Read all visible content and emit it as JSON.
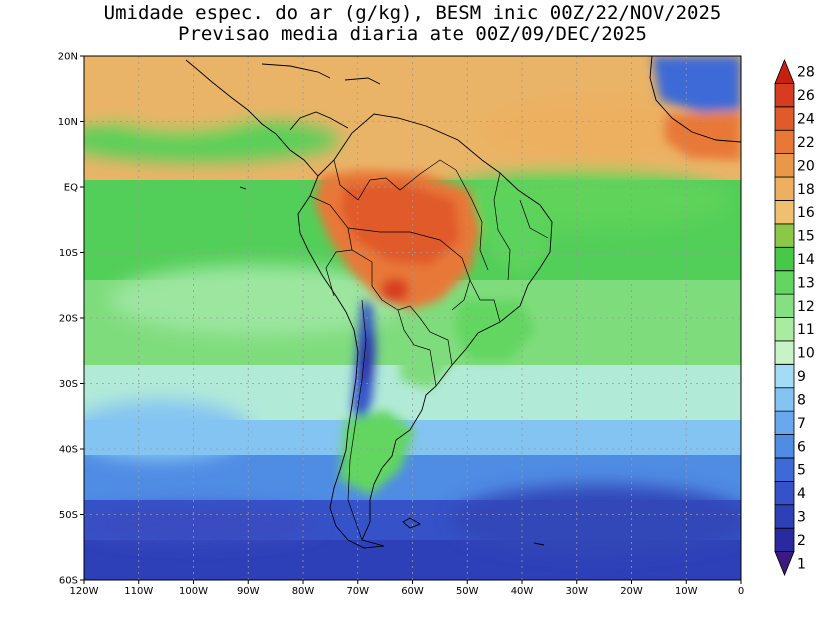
{
  "title": {
    "line1": "Umidade espec. do ar (g/kg), BESM inic 00Z/22/NOV/2025",
    "line2": "Previsao media diaria ate 00Z/09/DEC/2025"
  },
  "map": {
    "lon_range": [
      -120,
      0
    ],
    "lat_range": [
      -60,
      20
    ],
    "lat_labels": [
      {
        "lat": 20,
        "text": "20N"
      },
      {
        "lat": 10,
        "text": "10N"
      },
      {
        "lat": 0,
        "text": "EQ"
      },
      {
        "lat": -10,
        "text": "10S"
      },
      {
        "lat": -20,
        "text": "20S"
      },
      {
        "lat": -30,
        "text": "30S"
      },
      {
        "lat": -40,
        "text": "40S"
      },
      {
        "lat": -50,
        "text": "50S"
      },
      {
        "lat": -60,
        "text": "60S"
      }
    ],
    "lon_labels": [
      {
        "lon": -120,
        "text": "120W"
      },
      {
        "lon": -110,
        "text": "110W"
      },
      {
        "lon": -100,
        "text": "100W"
      },
      {
        "lon": -90,
        "text": "90W"
      },
      {
        "lon": -80,
        "text": "80W"
      },
      {
        "lon": -70,
        "text": "70W"
      },
      {
        "lon": -60,
        "text": "60W"
      },
      {
        "lon": -50,
        "text": "50W"
      },
      {
        "lon": -40,
        "text": "40W"
      },
      {
        "lon": -30,
        "text": "30W"
      },
      {
        "lon": -20,
        "text": "20W"
      },
      {
        "lon": -10,
        "text": "10W"
      },
      {
        "lon": 0,
        "text": "0"
      }
    ],
    "grid": true
  },
  "colorbar": {
    "levels": [
      "1",
      "2",
      "3",
      "4",
      "5",
      "6",
      "7",
      "8",
      "9",
      "10",
      "11",
      "12",
      "13",
      "14",
      "15",
      "16",
      "18",
      "20",
      "22",
      "24",
      "26",
      "28"
    ],
    "colors": [
      "#3a1a80",
      "#2a2aa0",
      "#2e40b8",
      "#3552c8",
      "#3d6ad6",
      "#4f8ce4",
      "#68a8ee",
      "#84c4f2",
      "#a4dcf6",
      "#c8f2c8",
      "#a8eca0",
      "#84e080",
      "#62d660",
      "#48c848",
      "#8cc848",
      "#f0c070",
      "#ecb060",
      "#e89848",
      "#e87838",
      "#e05a2a",
      "#d83c20",
      "#c82010"
    ]
  }
}
